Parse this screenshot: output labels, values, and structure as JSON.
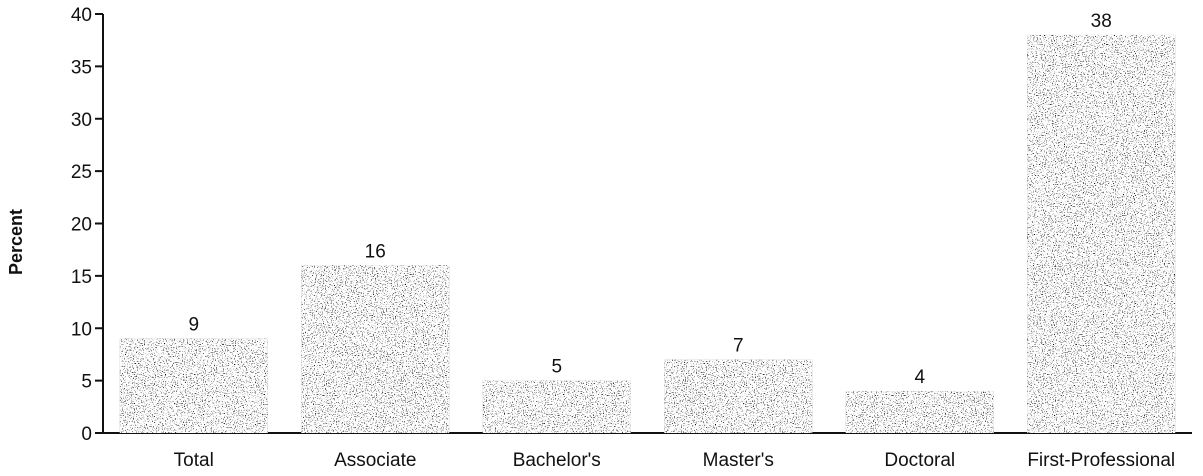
{
  "chart_data": {
    "type": "bar",
    "title": "",
    "xlabel": "",
    "ylabel": "Percent",
    "categories": [
      "Total",
      "Associate",
      "Bachelor's",
      "Master's",
      "Doctoral",
      "First-Professional"
    ],
    "values": [
      9,
      16,
      5,
      7,
      4,
      38
    ],
    "value_labels": [
      "9",
      "16",
      "5",
      "7",
      "4",
      "38"
    ],
    "ylim": [
      0,
      40
    ],
    "yticks": [
      0,
      5,
      10,
      15,
      20,
      25,
      30,
      35,
      40
    ],
    "ytick_labels": [
      "0",
      "5",
      "10",
      "15",
      "20",
      "25",
      "30",
      "35",
      "40"
    ],
    "grid": false,
    "legend": "none",
    "bar_color": "#0a0a0a"
  }
}
